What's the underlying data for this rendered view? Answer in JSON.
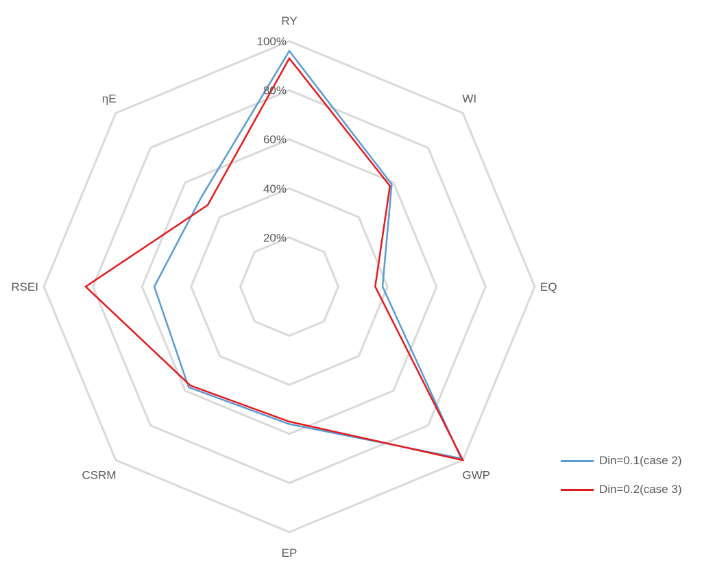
{
  "chart_data": {
    "type": "radar",
    "axes": [
      "RY",
      "WI",
      "EQ",
      "GWP",
      "EP",
      "CSRM",
      "RSEI",
      "ηE"
    ],
    "ticks": [
      "20%",
      "40%",
      "60%",
      "80%",
      "100%"
    ],
    "tick_values": [
      0.2,
      0.4,
      0.6,
      0.8,
      1.0
    ],
    "rlim": [
      0.0,
      1.0
    ],
    "grid": true,
    "legend_position": "bottom-right",
    "series": [
      {
        "name": "Din=0.1(case 2)",
        "color": "#5b9bd5",
        "values": [
          0.96,
          0.59,
          0.38,
          0.99,
          0.56,
          0.58,
          0.55,
          0.51
        ]
      },
      {
        "name": "Din=0.2(case 3)",
        "color": "#e41a1c",
        "values": [
          0.93,
          0.58,
          0.35,
          1.0,
          0.55,
          0.57,
          0.83,
          0.47
        ]
      }
    ]
  }
}
